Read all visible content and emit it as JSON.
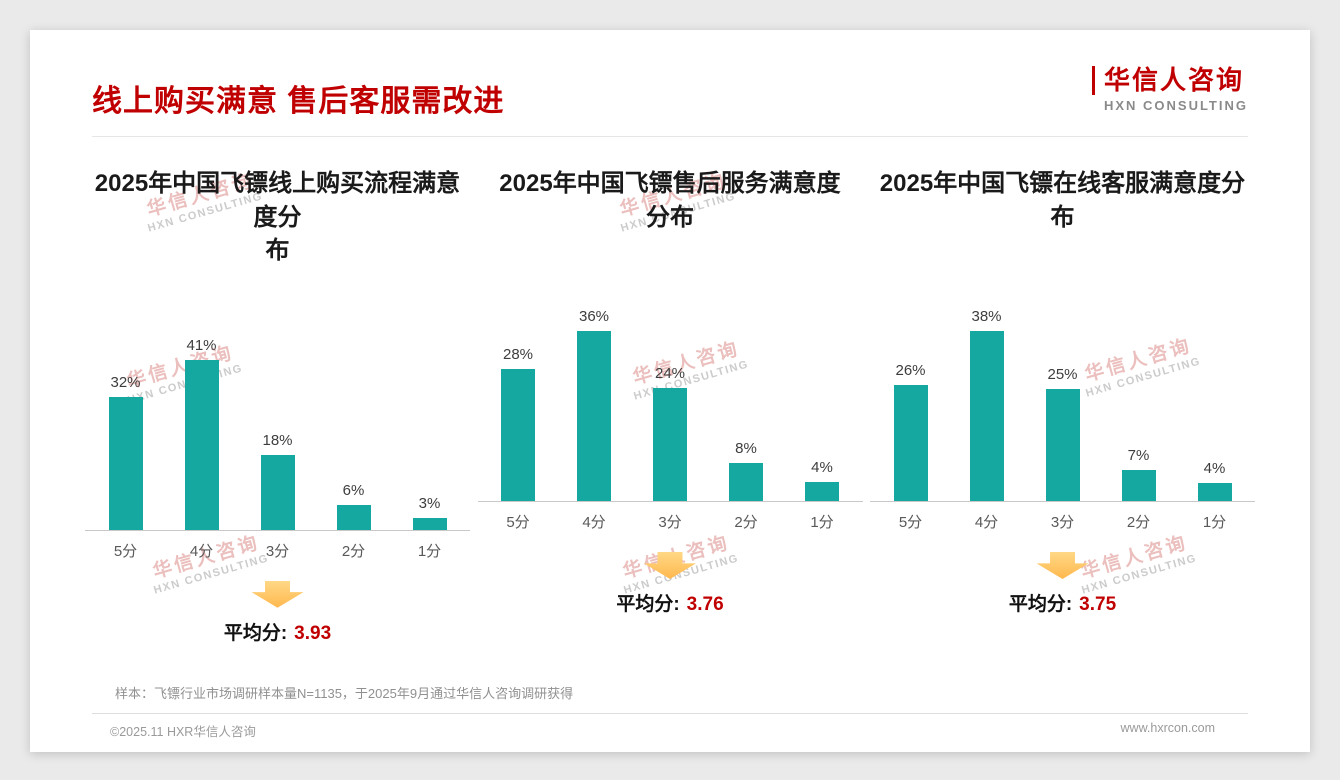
{
  "page": {
    "title": "线上购买满意 售后客服需改进",
    "logo": {
      "name": "华信人咨询",
      "subtitle": "HXN CONSULTING"
    },
    "watermark": {
      "line1": "华信人咨询",
      "line2": "HXN CONSULTING"
    },
    "footnote": "样本：飞镖行业市场调研样本量N=1135，于2025年9月通过华信人咨询调研获得",
    "footer": {
      "left": "©2025.11 HXR华信人咨询",
      "right": "www.hxrcon.com"
    }
  },
  "colors": {
    "bar_teal": "#15A8A1",
    "accent_red": "#C00000",
    "arrow_orange": "#FFC155"
  },
  "chart_data": [
    {
      "type": "bar",
      "title": "2025年中国飞镖线上购买流程满意度分\n布",
      "categories": [
        "5分",
        "4分",
        "3分",
        "2分",
        "1分"
      ],
      "values": [
        32,
        41,
        18,
        6,
        3
      ],
      "value_labels": [
        "32%",
        "41%",
        "18%",
        "6%",
        "3%"
      ],
      "ylim": [
        0,
        45
      ],
      "legend": "none",
      "grid": false,
      "average_label": "平均分:",
      "average_value": "3.93"
    },
    {
      "type": "bar",
      "title": "2025年中国飞镖售后服务满意度\n分布",
      "categories": [
        "5分",
        "4分",
        "3分",
        "2分",
        "1分"
      ],
      "values": [
        28,
        36,
        24,
        8,
        4
      ],
      "value_labels": [
        "28%",
        "36%",
        "24%",
        "8%",
        "4%"
      ],
      "ylim": [
        0,
        40
      ],
      "legend": "none",
      "grid": false,
      "average_label": "平均分:",
      "average_value": "3.76"
    },
    {
      "type": "bar",
      "title": "2025年中国飞镖在线客服满意度分\n布",
      "categories": [
        "5分",
        "4分",
        "3分",
        "2分",
        "1分"
      ],
      "values": [
        26,
        38,
        25,
        7,
        4
      ],
      "value_labels": [
        "26%",
        "38%",
        "25%",
        "7%",
        "4%"
      ],
      "ylim": [
        0,
        42
      ],
      "legend": "none",
      "grid": false,
      "average_label": "平均分:",
      "average_value": "3.75"
    }
  ]
}
